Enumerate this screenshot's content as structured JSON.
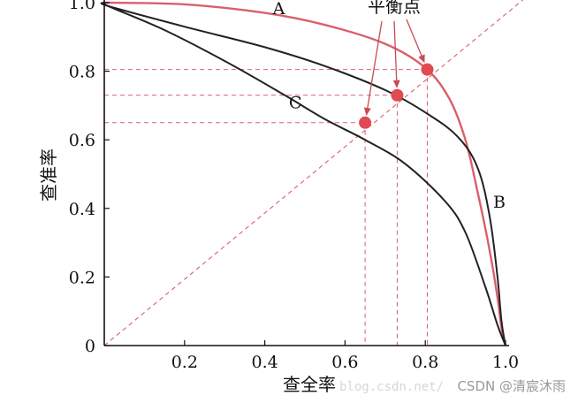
{
  "chart_data": {
    "type": "line",
    "title": "",
    "xlabel": "查全率",
    "ylabel": "查准率",
    "xlim": [
      0,
      1
    ],
    "ylim": [
      0,
      1
    ],
    "x_ticks": [
      "0.2",
      "0.4",
      "0.6",
      "0.8",
      "1.0"
    ],
    "y_ticks": [
      "0",
      "0.2",
      "0.4",
      "0.6",
      "0.8",
      "1.0"
    ],
    "grid": false,
    "series": [
      {
        "name": "A",
        "color": "#d9606a",
        "x": [
          0.0,
          0.2,
          0.4,
          0.55,
          0.7,
          0.8,
          0.86,
          0.9,
          0.93,
          0.96,
          0.98,
          0.99,
          1.0
        ],
        "y": [
          1.0,
          0.995,
          0.97,
          0.935,
          0.88,
          0.81,
          0.72,
          0.6,
          0.45,
          0.28,
          0.14,
          0.05,
          0.0
        ]
      },
      {
        "name": "B",
        "color": "#222222",
        "x": [
          0.0,
          0.01,
          0.2,
          0.4,
          0.55,
          0.7,
          0.8,
          0.88,
          0.93,
          0.96,
          0.98,
          0.99,
          1.0
        ],
        "y": [
          1.0,
          0.99,
          0.93,
          0.87,
          0.815,
          0.745,
          0.68,
          0.61,
          0.52,
          0.38,
          0.2,
          0.07,
          0.0
        ]
      },
      {
        "name": "C",
        "color": "#222222",
        "x": [
          0.0,
          0.01,
          0.15,
          0.3,
          0.45,
          0.55,
          0.65,
          0.75,
          0.85,
          0.9,
          0.95,
          0.98,
          1.0
        ],
        "y": [
          1.0,
          0.99,
          0.92,
          0.83,
          0.73,
          0.66,
          0.6,
          0.53,
          0.42,
          0.33,
          0.17,
          0.06,
          0.0
        ]
      }
    ],
    "diagonal": {
      "x": [
        0,
        1
      ],
      "y": [
        0,
        1
      ],
      "style": "dashed",
      "color": "#d9606a"
    },
    "equilibrium_points": [
      {
        "x": 0.65,
        "y": 0.65
      },
      {
        "x": 0.73,
        "y": 0.73
      },
      {
        "x": 0.805,
        "y": 0.805
      }
    ],
    "annotation": {
      "text": "平衡点",
      "color": "#d9606a"
    },
    "point_color": "#e04a52"
  },
  "watermark": {
    "url_text": "blog.csdn.net/",
    "csdn_text": "CSDN @清宸沐雨"
  }
}
